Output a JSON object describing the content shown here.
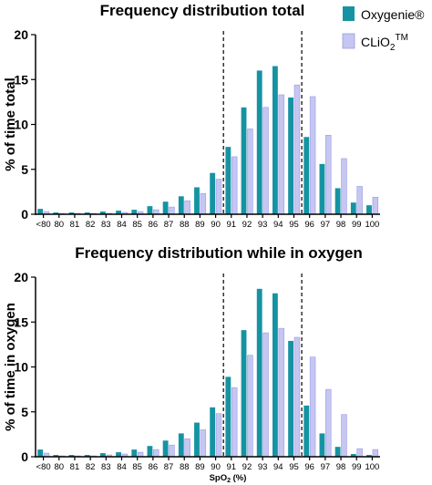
{
  "colors": {
    "oxygenie": "#1593a3",
    "clio2": "#c5c6f2",
    "clio2_stroke": "#9b9ce0"
  },
  "legend": {
    "series1": "Oxygenie®",
    "series2_base": "CLiO",
    "series2_sub": "2",
    "series2_sup": "TM"
  },
  "x_label": {
    "pre": "SpO",
    "sub": "2",
    "post": " (%)"
  },
  "chart_data": [
    {
      "type": "bar",
      "title": "Frequency distribution total",
      "ylabel": "% of time total",
      "ylim": [
        0,
        20
      ],
      "yticks": [
        "0",
        "5",
        "10",
        "15",
        "20"
      ],
      "categories": [
        "<80",
        "80",
        "81",
        "82",
        "83",
        "84",
        "85",
        "86",
        "87",
        "88",
        "89",
        "90",
        "91",
        "92",
        "93",
        "94",
        "95",
        "96",
        "97",
        "98",
        "99",
        "100"
      ],
      "reference_lines": [
        "90",
        "95"
      ],
      "series": [
        {
          "name": "Oxygenie®",
          "values": [
            0.6,
            0.2,
            0.2,
            0.2,
            0.3,
            0.4,
            0.5,
            0.9,
            1.4,
            2.0,
            3.0,
            4.6,
            7.5,
            11.9,
            16.0,
            16.5,
            13.0,
            8.6,
            5.6,
            2.9,
            1.3,
            1.0
          ]
        },
        {
          "name": "CLiO2TM",
          "values": [
            0.3,
            0.1,
            0.1,
            0.1,
            0.1,
            0.2,
            0.3,
            0.5,
            0.8,
            1.5,
            2.3,
            3.9,
            6.4,
            9.5,
            11.9,
            13.3,
            14.4,
            13.1,
            8.8,
            6.2,
            3.1,
            1.9
          ]
        }
      ]
    },
    {
      "type": "bar",
      "title": "Frequency distribution while in oxygen",
      "ylabel": "% of time in oxygen",
      "xlabel": "SpO2 (%)",
      "ylim": [
        0,
        20
      ],
      "yticks": [
        "0",
        "5",
        "10",
        "15",
        "20"
      ],
      "categories": [
        "<80",
        "80",
        "81",
        "82",
        "83",
        "84",
        "85",
        "86",
        "87",
        "88",
        "89",
        "90",
        "91",
        "92",
        "93",
        "94",
        "95",
        "96",
        "97",
        "98",
        "99",
        "100"
      ],
      "reference_lines": [
        "90",
        "95"
      ],
      "series": [
        {
          "name": "Oxygenie®",
          "values": [
            0.8,
            0.2,
            0.2,
            0.2,
            0.4,
            0.5,
            0.8,
            1.2,
            1.8,
            2.6,
            3.8,
            5.5,
            8.9,
            14.1,
            18.7,
            18.2,
            12.9,
            5.7,
            2.6,
            1.1,
            0.3,
            0.2
          ]
        },
        {
          "name": "CLiO2TM",
          "values": [
            0.4,
            0.1,
            0.1,
            0.1,
            0.2,
            0.3,
            0.5,
            0.8,
            1.3,
            2.0,
            3.0,
            4.8,
            7.7,
            11.3,
            13.8,
            14.3,
            13.3,
            11.1,
            7.5,
            4.7,
            0.9,
            0.8
          ]
        }
      ]
    }
  ]
}
